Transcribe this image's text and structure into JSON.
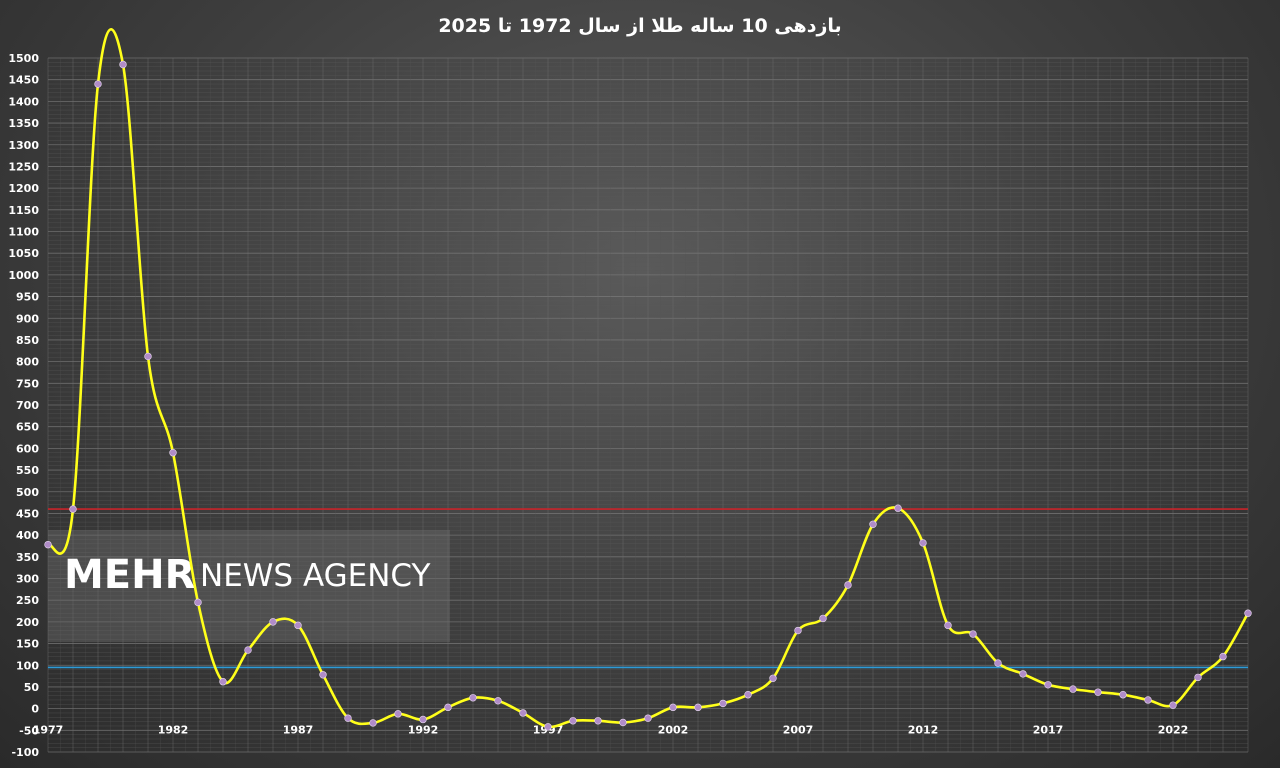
{
  "chart_data": {
    "type": "line",
    "title": "بازدهی 10 ساله طلا از سال 1972  تا 2025",
    "x": [
      1977,
      1978,
      1979,
      1980,
      1981,
      1982,
      1983,
      1984,
      1985,
      1986,
      1987,
      1988,
      1989,
      1990,
      1991,
      1992,
      1993,
      1994,
      1995,
      1996,
      1997,
      1998,
      1999,
      2000,
      2001,
      2002,
      2003,
      2004,
      2005,
      2006,
      2007,
      2008,
      2009,
      2010,
      2011,
      2012,
      2013,
      2014,
      2015,
      2016,
      2017,
      2018,
      2019,
      2020,
      2021,
      2022,
      2023,
      2024,
      2025
    ],
    "series": [
      {
        "color": "#ffff1a",
        "marker_color": "#b08cc8",
        "values": [
          378,
          460,
          1440,
          1485,
          812,
          590,
          245,
          62,
          135,
          200,
          192,
          78,
          -22,
          -33,
          -12,
          -25,
          3,
          25,
          18,
          -10,
          -42,
          -28,
          -28,
          -32,
          -22,
          3,
          3,
          12,
          32,
          70,
          180,
          208,
          285,
          425,
          462,
          382,
          192,
          172,
          105,
          80,
          55,
          45,
          38,
          32,
          20,
          8,
          72,
          120,
          220
        ]
      }
    ],
    "reference_lines": [
      {
        "value": 460,
        "color": "#c8242a"
      },
      {
        "value": 95,
        "color": "#2c9bd8"
      }
    ],
    "x_ticks": [
      "1977",
      "1982",
      "1987",
      "1992",
      "1997",
      "2002",
      "2007",
      "2012",
      "2017",
      "2022"
    ],
    "y_ticks": [
      "-100",
      "-50",
      "0",
      "50",
      "100",
      "150",
      "200",
      "250",
      "300",
      "350",
      "400",
      "450",
      "500",
      "550",
      "600",
      "650",
      "700",
      "750",
      "800",
      "850",
      "900",
      "950",
      "1000",
      "1050",
      "1100",
      "1150",
      "1200",
      "1250",
      "1300",
      "1350",
      "1400",
      "1450",
      "1500"
    ],
    "xlim": [
      1977,
      2025
    ],
    "ylim": [
      -100,
      1500
    ],
    "grid": true,
    "xlabel": "",
    "ylabel": ""
  },
  "watermark": {
    "brand": "MEHR",
    "text": "NEWS AGENCY"
  }
}
